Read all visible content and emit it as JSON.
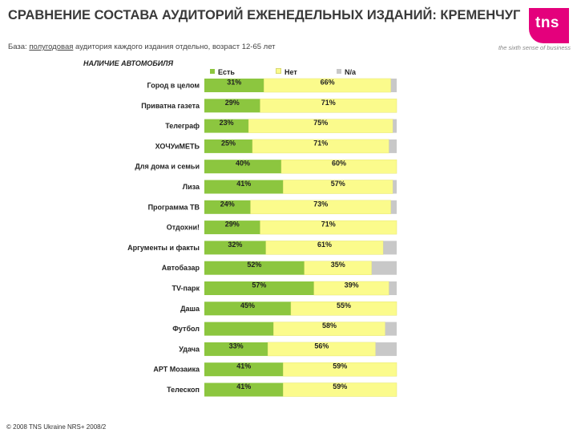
{
  "header": {
    "title": "СРАВНЕНИЕ СОСТАВА АУДИТОРИЙ ЕЖЕНЕДЕЛЬНЫХ ИЗДАНИЙ: КРЕМЕНЧУГ",
    "subtitle_prefix": "База: ",
    "subtitle_underlined": "полугодовая",
    "subtitle_rest": " аудитория каждого издания отдельно, возраст 12-65 лет"
  },
  "brand": {
    "logo_text": "tns",
    "tagline": "the sixth sense of business",
    "logo_color": "#e4007c"
  },
  "footer": {
    "copyright": "© 2008 TNS Ukraine NRS+ 2008/2"
  },
  "colors": {
    "yes": "#8cc63f",
    "no": "#fbfb8c",
    "na": "#c8c8c8"
  },
  "chart_data": {
    "type": "bar",
    "orientation": "horizontal",
    "stacked": "percent",
    "title": "НАЛИЧИЕ АВТОМОБИЛЯ",
    "legend_position": "top",
    "categories": [
      "Город в целом",
      "Приватна газета",
      "Телеграф",
      "ХОЧУиМЕТЬ",
      "Для дома и семьи",
      "Лиза",
      "Программа ТВ",
      "Отдохни!",
      "Аргументы и факты",
      "Автобазар",
      "TV-парк",
      "Даша",
      "Футбол",
      "Удача",
      "АРТ Мозаика",
      "Телескоп"
    ],
    "series": [
      {
        "name": "Есть",
        "values": [
          31,
          29,
          23,
          25,
          40,
          41,
          24,
          29,
          32,
          52,
          57,
          45,
          36,
          33,
          41,
          41
        ],
        "labels": [
          "31%",
          "29%",
          "23%",
          "25%",
          "40%",
          "41%",
          "24%",
          "29%",
          "32%",
          "52%",
          "57%",
          "45%",
          "",
          "33%",
          "41%",
          "41%"
        ]
      },
      {
        "name": "Нет",
        "values": [
          66,
          71,
          75,
          71,
          60,
          57,
          73,
          71,
          61,
          35,
          39,
          55,
          58,
          56,
          59,
          59
        ],
        "labels": [
          "66%",
          "71%",
          "75%",
          "71%",
          "60%",
          "57%",
          "73%",
          "71%",
          "61%",
          "35%",
          "39%",
          "55%",
          "58%",
          "56%",
          "59%",
          "59%"
        ]
      },
      {
        "name": "N/a",
        "values": [
          3,
          0,
          2,
          4,
          0,
          2,
          3,
          0,
          7,
          13,
          4,
          0,
          6,
          11,
          0,
          0
        ],
        "labels": [
          "",
          "",
          "",
          "",
          "",
          "",
          "",
          "",
          "",
          "",
          "",
          "",
          "",
          "",
          "",
          ""
        ]
      }
    ],
    "xlim": [
      0,
      100
    ]
  }
}
